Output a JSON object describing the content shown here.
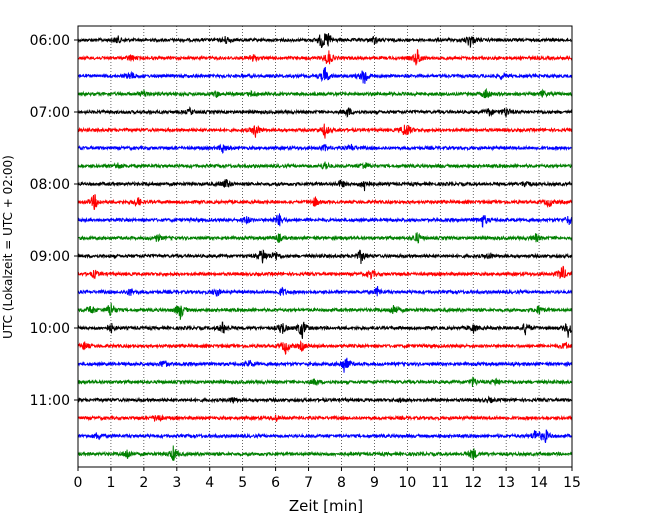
{
  "chart_data": {
    "type": "line",
    "xlabel": "Zeit  [min]",
    "ylabel": "UTC (Lokalzeit = UTC + 02:00)",
    "xlim": [
      0,
      15
    ],
    "x_ticks": [
      "0",
      "1",
      "2",
      "3",
      "4",
      "5",
      "6",
      "7",
      "8",
      "9",
      "10",
      "11",
      "12",
      "13",
      "14",
      "15"
    ],
    "y_ticks": [
      "06:00",
      "07:00",
      "08:00",
      "09:00",
      "10:00",
      "11:00"
    ],
    "grid": "vertical dotted",
    "trace_interval_min": 15,
    "trace_colors": [
      "#000000",
      "#ff0000",
      "#0000ff",
      "#008000"
    ],
    "traces": [
      {
        "start": "06:00",
        "color": "#000000",
        "events": [
          [
            1.2,
            0.5
          ],
          [
            4.5,
            0.5
          ],
          [
            7.4,
            1.0
          ],
          [
            7.6,
            0.9
          ],
          [
            9.0,
            0.5
          ],
          [
            11.9,
            1.0
          ]
        ]
      },
      {
        "start": "06:15",
        "color": "#ff0000",
        "events": [
          [
            1.6,
            0.4
          ],
          [
            5.3,
            0.5
          ],
          [
            7.6,
            1.1
          ],
          [
            10.3,
            1.2
          ]
        ]
      },
      {
        "start": "06:30",
        "color": "#0000ff",
        "events": [
          [
            1.6,
            0.6
          ],
          [
            7.5,
            1.2
          ],
          [
            8.7,
            1.3
          ],
          [
            12.9,
            0.4
          ]
        ]
      },
      {
        "start": "06:45",
        "color": "#008000",
        "events": [
          [
            2.0,
            0.5
          ],
          [
            4.2,
            0.4
          ],
          [
            5.3,
            0.4
          ],
          [
            12.4,
            0.7
          ],
          [
            14.1,
            0.4
          ]
        ]
      },
      {
        "start": "07:00",
        "color": "#000000",
        "events": [
          [
            3.4,
            0.4
          ],
          [
            8.2,
            0.6
          ],
          [
            12.5,
            0.5
          ],
          [
            13.0,
            0.7
          ]
        ]
      },
      {
        "start": "07:15",
        "color": "#ff0000",
        "events": [
          [
            5.4,
            1.0
          ],
          [
            7.5,
            0.9
          ],
          [
            9.9,
            0.5
          ],
          [
            10.0,
            0.6
          ]
        ]
      },
      {
        "start": "07:30",
        "color": "#0000ff",
        "events": [
          [
            4.4,
            0.6
          ],
          [
            7.5,
            0.4
          ],
          [
            8.3,
            0.4
          ]
        ]
      },
      {
        "start": "07:45",
        "color": "#008000",
        "events": [
          [
            1.2,
            0.4
          ],
          [
            7.5,
            0.6
          ],
          [
            8.7,
            0.5
          ]
        ]
      },
      {
        "start": "08:00",
        "color": "#000000",
        "events": [
          [
            4.5,
            0.7
          ],
          [
            8.0,
            0.5
          ],
          [
            8.7,
            0.8
          ],
          [
            13.6,
            0.5
          ]
        ]
      },
      {
        "start": "08:15",
        "color": "#ff0000",
        "events": [
          [
            0.5,
            1.0
          ],
          [
            1.8,
            0.7
          ],
          [
            7.2,
            0.6
          ],
          [
            14.3,
            0.6
          ]
        ]
      },
      {
        "start": "08:30",
        "color": "#0000ff",
        "events": [
          [
            5.1,
            0.5
          ],
          [
            6.1,
            0.9
          ],
          [
            12.3,
            0.9
          ],
          [
            14.9,
            0.6
          ]
        ]
      },
      {
        "start": "08:45",
        "color": "#008000",
        "events": [
          [
            2.4,
            0.5
          ],
          [
            6.1,
            0.5
          ],
          [
            10.3,
            0.7
          ],
          [
            13.9,
            0.5
          ]
        ]
      },
      {
        "start": "09:00",
        "color": "#000000",
        "events": [
          [
            5.6,
            1.1
          ],
          [
            6.0,
            0.6
          ],
          [
            8.6,
            0.9
          ],
          [
            12.5,
            0.4
          ]
        ]
      },
      {
        "start": "09:15",
        "color": "#ff0000",
        "events": [
          [
            0.5,
            0.5
          ],
          [
            8.9,
            0.6
          ],
          [
            14.7,
            1.2
          ]
        ]
      },
      {
        "start": "09:30",
        "color": "#0000ff",
        "events": [
          [
            1.6,
            0.5
          ],
          [
            4.2,
            0.6
          ],
          [
            6.2,
            0.5
          ],
          [
            9.1,
            0.6
          ]
        ]
      },
      {
        "start": "09:45",
        "color": "#008000",
        "events": [
          [
            0.4,
            0.6
          ],
          [
            1.0,
            1.1
          ],
          [
            3.1,
            1.2
          ],
          [
            9.6,
            0.8
          ],
          [
            14.0,
            0.6
          ]
        ]
      },
      {
        "start": "10:00",
        "color": "#000000",
        "events": [
          [
            1.0,
            0.6
          ],
          [
            4.4,
            0.8
          ],
          [
            6.2,
            0.9
          ],
          [
            6.8,
            1.4
          ],
          [
            12.0,
            0.6
          ],
          [
            13.6,
            0.9
          ],
          [
            14.9,
            1.3
          ]
        ]
      },
      {
        "start": "10:15",
        "color": "#ff0000",
        "events": [
          [
            0.2,
            0.5
          ],
          [
            6.3,
            0.9
          ],
          [
            6.8,
            0.6
          ],
          [
            14.8,
            0.5
          ]
        ]
      },
      {
        "start": "10:30",
        "color": "#0000ff",
        "events": [
          [
            2.6,
            0.5
          ],
          [
            5.2,
            0.5
          ],
          [
            8.1,
            1.3
          ]
        ]
      },
      {
        "start": "10:45",
        "color": "#008000",
        "events": [
          [
            7.2,
            0.4
          ],
          [
            12.0,
            0.6
          ],
          [
            12.7,
            0.4
          ]
        ]
      },
      {
        "start": "11:00",
        "color": "#000000",
        "events": [
          [
            4.7,
            0.4
          ],
          [
            9.8,
            0.3
          ],
          [
            12.5,
            0.3
          ]
        ]
      },
      {
        "start": "11:15",
        "color": "#ff0000",
        "events": [
          [
            2.4,
            0.7
          ],
          [
            6.0,
            0.4
          ]
        ]
      },
      {
        "start": "11:30",
        "color": "#0000ff",
        "events": [
          [
            0.6,
            0.5
          ],
          [
            13.9,
            0.9
          ],
          [
            14.2,
            0.8
          ]
        ]
      },
      {
        "start": "11:45",
        "color": "#008000",
        "events": [
          [
            1.5,
            0.7
          ],
          [
            2.9,
            1.0
          ],
          [
            12.0,
            0.8
          ]
        ]
      }
    ]
  }
}
